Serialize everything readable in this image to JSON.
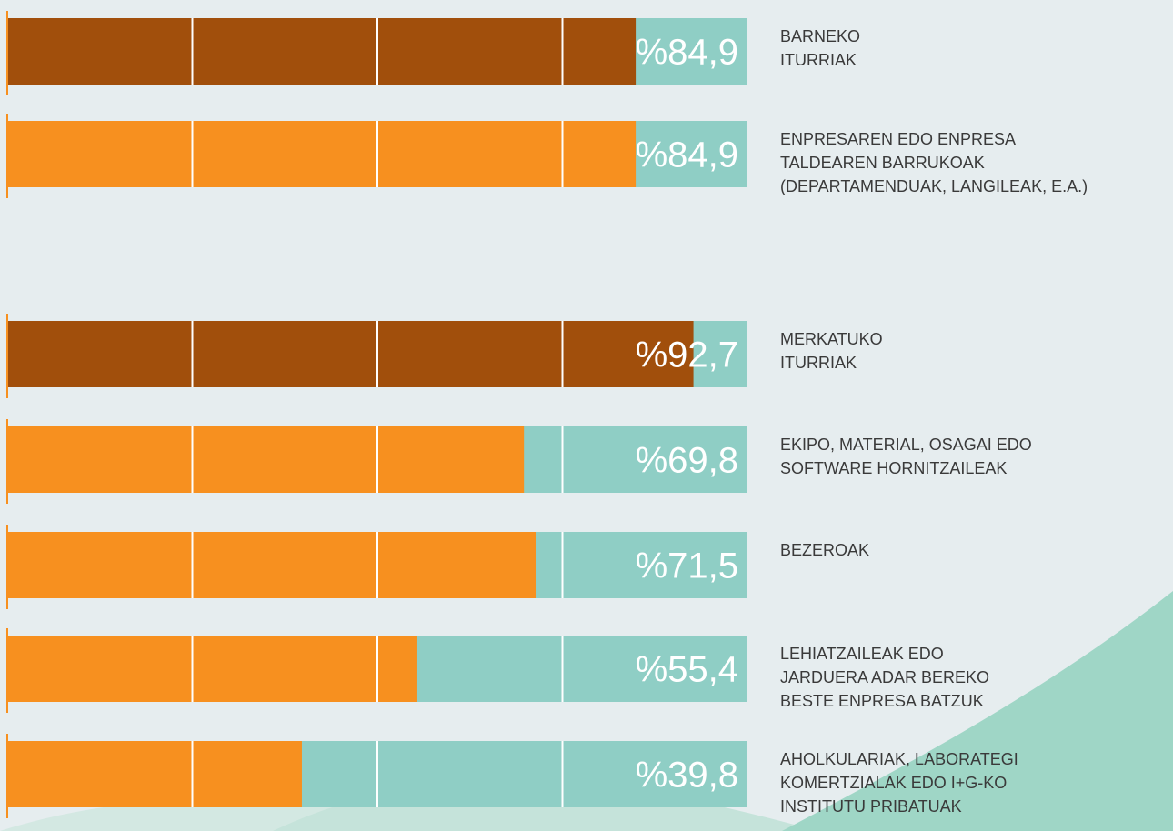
{
  "chart_data": {
    "type": "bar",
    "orientation": "horizontal",
    "categories": [
      [
        "BARNEKO",
        "ITURRIAK"
      ],
      [
        "ENPRESAREN EDO ENPRESA",
        "TALDEAREN BARRUKOAK",
        "(DEPARTAMENDUAK, LANGILEAK, E.A.)"
      ],
      [
        "MERKATUKO",
        "ITURRIAK"
      ],
      [
        "EKIPO, MATERIAL, OSAGAI EDO",
        "SOFTWARE HORNITZAILEAK"
      ],
      [
        "BEZEROAK"
      ],
      [
        "LEHIATZAILEAK EDO",
        "JARDUERA ADAR BEREKO",
        "BESTE ENPRESA BATZUK"
      ],
      [
        "AHOLKULARIAK, LABORATEGI",
        "KOMERTZIALAK EDO I+G-KO",
        "INSTITUTU PRIBATUAK"
      ]
    ],
    "values": [
      84.9,
      84.9,
      92.7,
      69.8,
      71.5,
      55.4,
      39.8
    ],
    "value_labels": [
      "%84,9",
      "%84,9",
      "%92,7",
      "%69,8",
      "%71,5",
      "%55,4",
      "%39,8"
    ],
    "colors": [
      "#a14f0c",
      "#f7901f",
      "#a14f0c",
      "#f7901f",
      "#f7901f",
      "#f7901f",
      "#f7901f"
    ],
    "track_color": "#8fcec5",
    "xlim": [
      0,
      100
    ],
    "xticks": [
      25,
      50,
      75
    ],
    "grid": true
  }
}
